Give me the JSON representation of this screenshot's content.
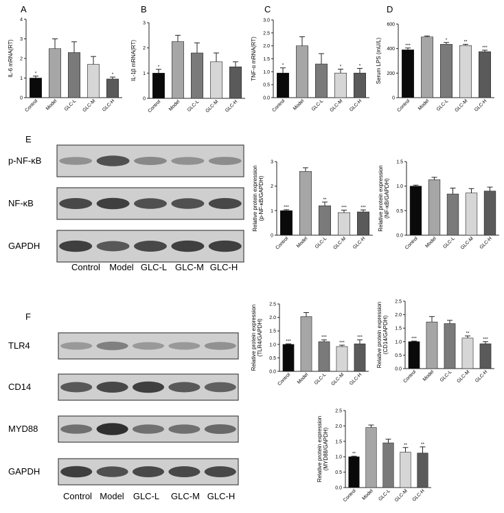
{
  "panels": {
    "A": "A",
    "B": "B",
    "C": "C",
    "D": "D",
    "E": "E",
    "F": "F"
  },
  "colors": {
    "Control": "#0a0a0a",
    "Model": "#a6a6a6",
    "GLC-L": "#7a7a7a",
    "GLC-M": "#d6d6d6",
    "GLC-H": "#5a5a5a"
  },
  "chart_data": [
    {
      "id": "A",
      "type": "bar",
      "ylabel": "IL-6 mRNA(RT)",
      "categories": [
        "Control",
        "Model",
        "GLC-L",
        "GLC-M",
        "GLC-H"
      ],
      "values": [
        1.0,
        2.5,
        2.3,
        1.7,
        0.95
      ],
      "errors": [
        0.1,
        0.5,
        0.55,
        0.4,
        0.1
      ],
      "sig": [
        "*",
        "",
        "",
        "",
        "*"
      ],
      "ylim": [
        0,
        4
      ],
      "yticks": [
        0,
        1,
        2,
        3,
        4
      ],
      "yticklabels": [
        "0",
        "1",
        "2",
        "3",
        "4"
      ]
    },
    {
      "id": "B",
      "type": "bar",
      "ylabel": "IL-1β mRNA(RT)",
      "categories": [
        "Control",
        "Model",
        "GLC-L",
        "GLC-M",
        "GLC-H"
      ],
      "values": [
        1.0,
        2.25,
        1.8,
        1.45,
        1.25
      ],
      "errors": [
        0.15,
        0.25,
        0.4,
        0.35,
        0.2
      ],
      "sig": [
        "*",
        "",
        "",
        "",
        ""
      ],
      "ylim": [
        0,
        3
      ],
      "yticks": [
        0,
        1,
        2,
        3
      ],
      "yticklabels": [
        "0",
        "1",
        "2",
        "3"
      ]
    },
    {
      "id": "C",
      "type": "bar",
      "ylabel": "TNF-α mRNA(RT)",
      "categories": [
        "Control",
        "Model",
        "GLC-L",
        "GLC-M",
        "GLC-H"
      ],
      "values": [
        0.95,
        2.0,
        1.3,
        0.95,
        0.95
      ],
      "errors": [
        0.2,
        0.35,
        0.4,
        0.15,
        0.18
      ],
      "sig": [
        "*",
        "",
        "",
        "*",
        "*"
      ],
      "ylim": [
        0,
        3
      ],
      "yticks": [
        0,
        0.5,
        1,
        1.5,
        2,
        2.5,
        3
      ],
      "yticklabels": [
        "0.0",
        "0.5",
        "1.0",
        "1.5",
        "2.0",
        "2.5",
        "3.0"
      ]
    },
    {
      "id": "D",
      "type": "bar",
      "ylabel": "Serum LPS (mU/L)",
      "categories": [
        "Control",
        "Model",
        "GLC-L",
        "GLC-M",
        "GLC-H"
      ],
      "values": [
        390,
        495,
        435,
        425,
        375
      ],
      "errors": [
        15,
        8,
        15,
        10,
        12
      ],
      "sig": [
        "***",
        "",
        "*",
        "**",
        "***"
      ],
      "ylim": [
        0,
        600
      ],
      "yticks": [
        0,
        200,
        400,
        600
      ],
      "yticklabels": [
        "0",
        "200",
        "400",
        "600"
      ]
    },
    {
      "id": "E1",
      "type": "bar",
      "ylabel": "Relative protein expression (p-NF-κB/GAPDH)",
      "categories": [
        "Control",
        "Model",
        "GLC-L",
        "GLC-M",
        "GLC-H"
      ],
      "values": [
        1.0,
        2.6,
        1.2,
        0.92,
        0.95
      ],
      "errors": [
        0.04,
        0.15,
        0.15,
        0.1,
        0.08
      ],
      "sig": [
        "***",
        "",
        "**",
        "***",
        "***"
      ],
      "ylim": [
        0,
        3
      ],
      "yticks": [
        0,
        1,
        2,
        3
      ],
      "yticklabels": [
        "0",
        "1",
        "2",
        "3"
      ]
    },
    {
      "id": "E2",
      "type": "bar",
      "ylabel": "Relative protein expression (NF-κB/GAPDH)",
      "categories": [
        "Control",
        "Model",
        "GLC-L",
        "GLC-M",
        "GLC-H"
      ],
      "values": [
        1.0,
        1.13,
        0.84,
        0.86,
        0.9
      ],
      "errors": [
        0.02,
        0.05,
        0.12,
        0.09,
        0.08
      ],
      "sig": [
        "",
        "",
        "",
        "",
        ""
      ],
      "ylim": [
        0,
        1.5
      ],
      "yticks": [
        0,
        0.5,
        1,
        1.5
      ],
      "yticklabels": [
        "0.0",
        "0.5",
        "1.0",
        "1.5"
      ]
    },
    {
      "id": "F1",
      "type": "bar",
      "ylabel": "Relative protein expression (TLR4/GAPDH)",
      "categories": [
        "Control",
        "Model",
        "GLC-L",
        "GLC-M",
        "GLC-H"
      ],
      "values": [
        1.0,
        2.03,
        1.1,
        0.92,
        1.02
      ],
      "errors": [
        0.02,
        0.15,
        0.07,
        0.05,
        0.15
      ],
      "sig": [
        "***",
        "",
        "***",
        "***",
        "***"
      ],
      "ylim": [
        0,
        2.5
      ],
      "yticks": [
        0,
        0.5,
        1,
        1.5,
        2,
        2.5
      ],
      "yticklabels": [
        "0.0",
        "0.5",
        "1.0",
        "1.5",
        "2.0",
        "2.5"
      ]
    },
    {
      "id": "F2",
      "type": "bar",
      "ylabel": "Relative protein expression (CD14/GAPDH)",
      "categories": [
        "Control",
        "Model",
        "GLC-L",
        "GLC-M",
        "GLC-H"
      ],
      "values": [
        1.0,
        1.73,
        1.67,
        1.13,
        0.92
      ],
      "errors": [
        0.02,
        0.2,
        0.12,
        0.08,
        0.08
      ],
      "sig": [
        "***",
        "",
        "",
        "**",
        "***"
      ],
      "ylim": [
        0,
        2.5
      ],
      "yticks": [
        0,
        0.5,
        1,
        1.5,
        2,
        2.5
      ],
      "yticklabels": [
        "0.0",
        "0.5",
        "1.0",
        "1.5",
        "2.0",
        "2.5"
      ]
    },
    {
      "id": "F3",
      "type": "bar",
      "ylabel": "Relative protein expression (MYD88/GAPDH)",
      "categories": [
        "Control",
        "Model",
        "GLC-L",
        "GLC-M",
        "GLC-H"
      ],
      "values": [
        1.0,
        1.95,
        1.45,
        1.15,
        1.12
      ],
      "errors": [
        0.02,
        0.08,
        0.12,
        0.15,
        0.2
      ],
      "sig": [
        "**",
        "",
        "",
        "**",
        "**"
      ],
      "ylim": [
        0,
        2.5
      ],
      "yticks": [
        0,
        0.5,
        1,
        1.5,
        2,
        2.5
      ],
      "yticklabels": [
        "0.0",
        "0.5",
        "1.0",
        "1.5",
        "2.0",
        "2.5"
      ]
    }
  ],
  "blots": {
    "E": {
      "rows": [
        "p-NF-κB",
        "NF-κB",
        "GAPDH"
      ],
      "lanes": [
        "Control",
        "Model",
        "GLC-L",
        "GLC-M",
        "GLC-H"
      ],
      "intensity": [
        [
          0.35,
          0.75,
          0.4,
          0.35,
          0.38
        ],
        [
          0.8,
          0.85,
          0.75,
          0.75,
          0.8
        ],
        [
          0.85,
          0.7,
          0.8,
          0.85,
          0.85
        ]
      ]
    },
    "F": {
      "rows": [
        "TLR4",
        "CD14",
        "MYD88",
        "GAPDH"
      ],
      "lanes": [
        "Control",
        "Model",
        "GLC-L",
        "GLC-M",
        "GLC-H"
      ],
      "intensity": [
        [
          0.3,
          0.45,
          0.3,
          0.3,
          0.35
        ],
        [
          0.7,
          0.8,
          0.85,
          0.7,
          0.65
        ],
        [
          0.55,
          0.95,
          0.55,
          0.55,
          0.6
        ],
        [
          0.85,
          0.75,
          0.8,
          0.8,
          0.8
        ]
      ]
    }
  }
}
